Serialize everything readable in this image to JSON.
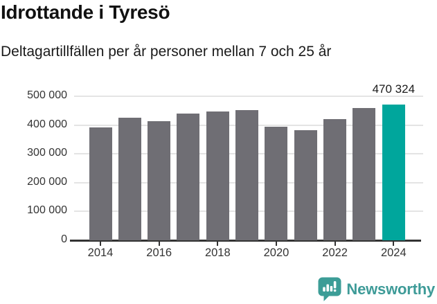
{
  "header": {
    "title": "Idrottande i Tyresö",
    "subtitle": "Deltagartillfällen per år personer mellan 7 och 25 år"
  },
  "chart_data": {
    "type": "bar",
    "title": "Idrottande i Tyresö",
    "subtitle": "Deltagartillfällen per år personer mellan 7 och 25 år",
    "categories": [
      "2014",
      "2015",
      "2016",
      "2017",
      "2018",
      "2019",
      "2020",
      "2021",
      "2022",
      "2023",
      "2024"
    ],
    "values": [
      392000,
      426000,
      414000,
      441000,
      447000,
      453000,
      394000,
      383000,
      420000,
      458000,
      470324
    ],
    "highlight_index": 10,
    "data_label": {
      "index": 10,
      "text": "470 324"
    },
    "ylim": [
      0,
      500000
    ],
    "grid": true,
    "legend_position": "none",
    "y_ticks": [
      {
        "value": 500000,
        "label": "500 000"
      },
      {
        "value": 400000,
        "label": "400 000"
      },
      {
        "value": 300000,
        "label": "300 000"
      },
      {
        "value": 200000,
        "label": "200 000"
      },
      {
        "value": 100000,
        "label": "100 000"
      },
      {
        "value": 0,
        "label": "0"
      }
    ],
    "x_ticks": [
      {
        "index": 0,
        "label": "2014"
      },
      {
        "index": 2,
        "label": "2016"
      },
      {
        "index": 4,
        "label": "2018"
      },
      {
        "index": 6,
        "label": "2020"
      },
      {
        "index": 8,
        "label": "2022"
      },
      {
        "index": 10,
        "label": "2024"
      }
    ]
  },
  "footer": {
    "logo_text": "Newsworthy",
    "logo_icon": "newsworthy-speech-bubble-bar-chart-icon"
  },
  "colors": {
    "background": "#FFFFFF",
    "bar": "#6F6E74",
    "highlight": "#00A69C",
    "gridline": "#E4E4E4",
    "axis": "#333333",
    "title_text": "#111111",
    "tick_text": "#333333",
    "logo": "#3E9B98"
  }
}
